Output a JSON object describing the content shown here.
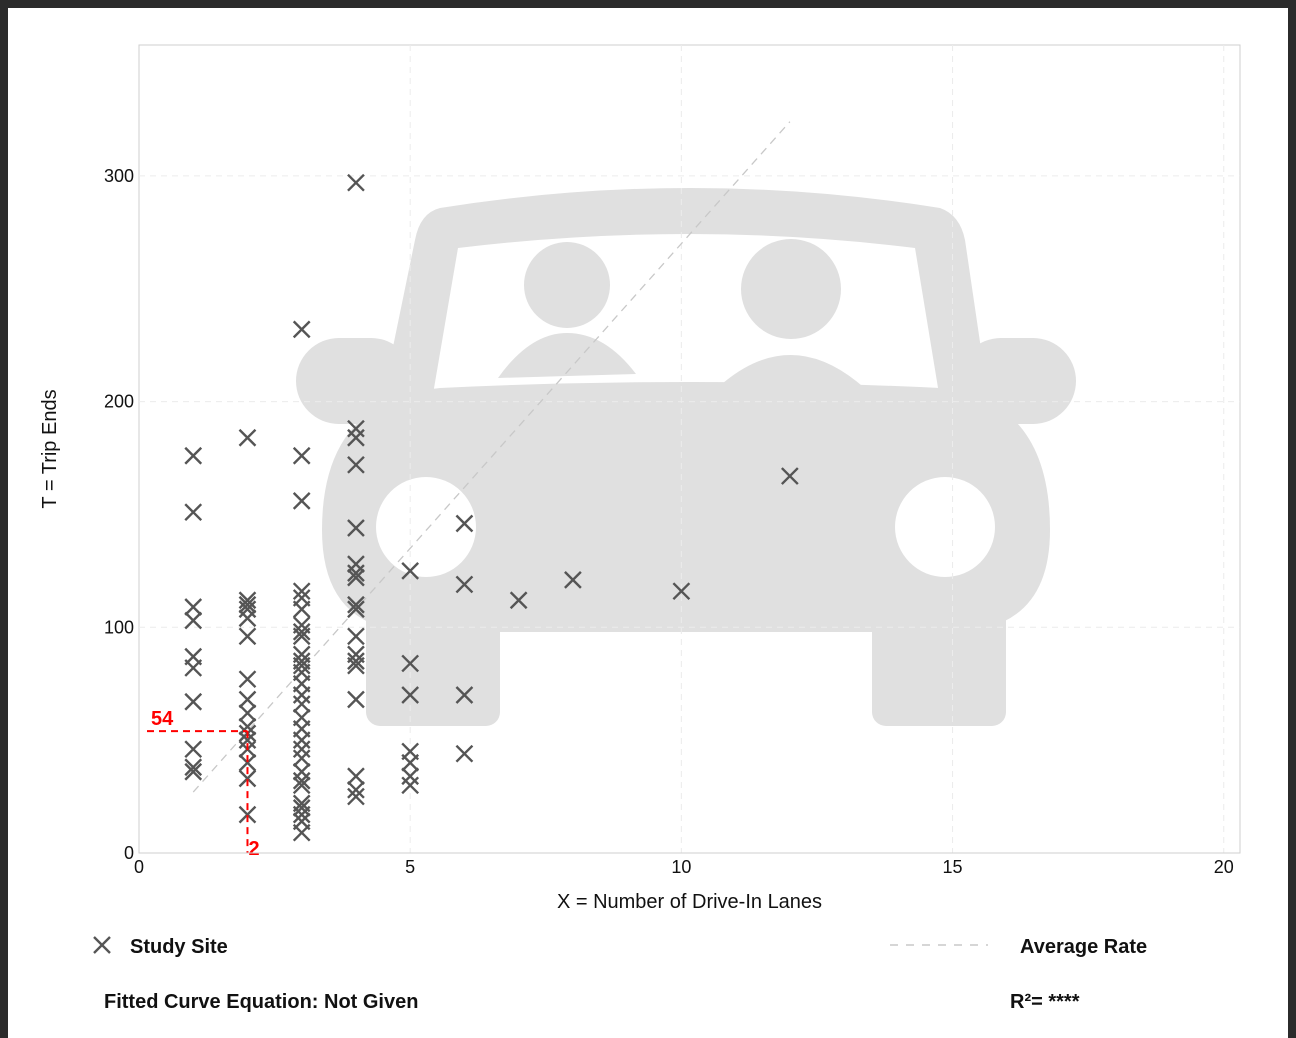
{
  "chart_data": {
    "type": "scatter",
    "title": "",
    "xlabel": "X = Number of Drive-In Lanes",
    "ylabel": "T = Trip Ends",
    "xlim": [
      0,
      20.3
    ],
    "ylim": [
      0,
      358
    ],
    "xticks": [
      0,
      5,
      10,
      15,
      20
    ],
    "yticks": [
      0,
      100,
      200,
      300
    ],
    "xtick_labels": [
      "0",
      "5",
      "10",
      "15",
      "20"
    ],
    "ytick_labels": [
      "0",
      "100",
      "200",
      "300"
    ],
    "grid": true,
    "legend_position": "bottom",
    "background_icon": "car-with-two-occupants-icon",
    "colors": {
      "marker": "#555555",
      "average_line": "#c8c8c8",
      "highlight": "#ff0000",
      "icon": "#e0e0e0",
      "frame": "#2b2b2b"
    },
    "series": [
      {
        "name": "Study Site",
        "marker": "x",
        "points": [
          [
            1,
            176
          ],
          [
            1,
            151
          ],
          [
            1,
            109
          ],
          [
            1,
            103
          ],
          [
            1,
            87
          ],
          [
            1,
            82
          ],
          [
            1,
            67
          ],
          [
            1,
            46
          ],
          [
            1,
            38
          ],
          [
            1,
            36
          ],
          [
            2,
            184
          ],
          [
            2,
            112
          ],
          [
            2,
            110
          ],
          [
            2,
            108
          ],
          [
            2,
            104
          ],
          [
            2,
            96
          ],
          [
            2,
            77
          ],
          [
            2,
            68
          ],
          [
            2,
            62
          ],
          [
            2,
            56
          ],
          [
            2,
            53
          ],
          [
            2,
            50
          ],
          [
            2,
            46
          ],
          [
            2,
            40
          ],
          [
            2,
            33
          ],
          [
            2,
            17
          ],
          [
            3,
            232
          ],
          [
            3,
            176
          ],
          [
            3,
            156
          ],
          [
            3,
            116
          ],
          [
            3,
            113
          ],
          [
            3,
            108
          ],
          [
            3,
            101
          ],
          [
            3,
            98
          ],
          [
            3,
            96
          ],
          [
            3,
            88
          ],
          [
            3,
            85
          ],
          [
            3,
            83
          ],
          [
            3,
            80
          ],
          [
            3,
            75
          ],
          [
            3,
            70
          ],
          [
            3,
            66
          ],
          [
            3,
            60
          ],
          [
            3,
            55
          ],
          [
            3,
            50
          ],
          [
            3,
            46
          ],
          [
            3,
            42
          ],
          [
            3,
            36
          ],
          [
            3,
            32
          ],
          [
            3,
            30
          ],
          [
            3,
            22
          ],
          [
            3,
            20
          ],
          [
            3,
            17
          ],
          [
            3,
            14
          ],
          [
            3,
            9
          ],
          [
            4,
            297
          ],
          [
            4,
            188
          ],
          [
            4,
            184
          ],
          [
            4,
            172
          ],
          [
            4,
            144
          ],
          [
            4,
            128
          ],
          [
            4,
            124
          ],
          [
            4,
            122
          ],
          [
            4,
            110
          ],
          [
            4,
            108
          ],
          [
            4,
            96
          ],
          [
            4,
            88
          ],
          [
            4,
            85
          ],
          [
            4,
            83
          ],
          [
            4,
            68
          ],
          [
            4,
            34
          ],
          [
            4,
            28
          ],
          [
            4,
            25
          ],
          [
            5,
            125
          ],
          [
            5,
            84
          ],
          [
            5,
            70
          ],
          [
            5,
            45
          ],
          [
            5,
            40
          ],
          [
            5,
            34
          ],
          [
            5,
            30
          ],
          [
            6,
            146
          ],
          [
            6,
            119
          ],
          [
            6,
            70
          ],
          [
            6,
            44
          ],
          [
            7,
            112
          ],
          [
            8,
            121
          ],
          [
            10,
            116
          ],
          [
            12,
            167
          ]
        ]
      },
      {
        "name": "Average Rate",
        "style": "dashed",
        "x": [
          1,
          12
        ],
        "y": [
          27,
          324
        ]
      }
    ],
    "highlight": {
      "x": 2,
      "y": 54,
      "x_label": "2",
      "y_label": "54"
    }
  },
  "legend": {
    "study_site": "Study Site",
    "average_rate": "Average Rate"
  },
  "footer": {
    "equation": "Fitted Curve Equation: Not Given",
    "r_squared": "R²= ****"
  }
}
